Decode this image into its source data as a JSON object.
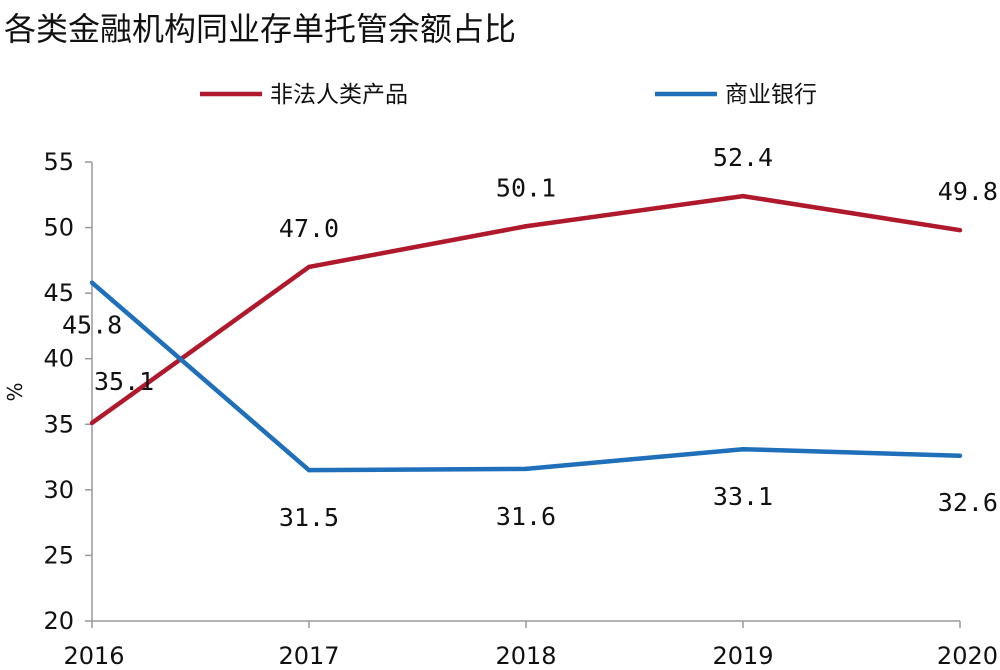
{
  "chart_data": {
    "type": "line",
    "title": "各类金融机构同业存单托管余额占比",
    "xlabel": "",
    "ylabel": "%",
    "categories": [
      "2016",
      "2017",
      "2018",
      "2019",
      "2020"
    ],
    "ylim": [
      20,
      55
    ],
    "yticks": [
      "55",
      "50",
      "45",
      "40",
      "35",
      "30",
      "25",
      "20"
    ],
    "grid": false,
    "legend_position": "top",
    "series": [
      {
        "name": "非法人类产品",
        "color": "#b0182c",
        "values": [
          35.1,
          47.0,
          50.1,
          52.4,
          49.8
        ],
        "labels": [
          "35.1",
          "47.0",
          "50.1",
          "52.4",
          "49.8"
        ]
      },
      {
        "name": "商业银行",
        "color": "#1f6fba",
        "values": [
          45.8,
          31.5,
          31.6,
          33.1,
          32.6
        ],
        "labels": [
          "45.8",
          "31.5",
          "31.6",
          "33.1",
          "32.6"
        ]
      }
    ]
  }
}
